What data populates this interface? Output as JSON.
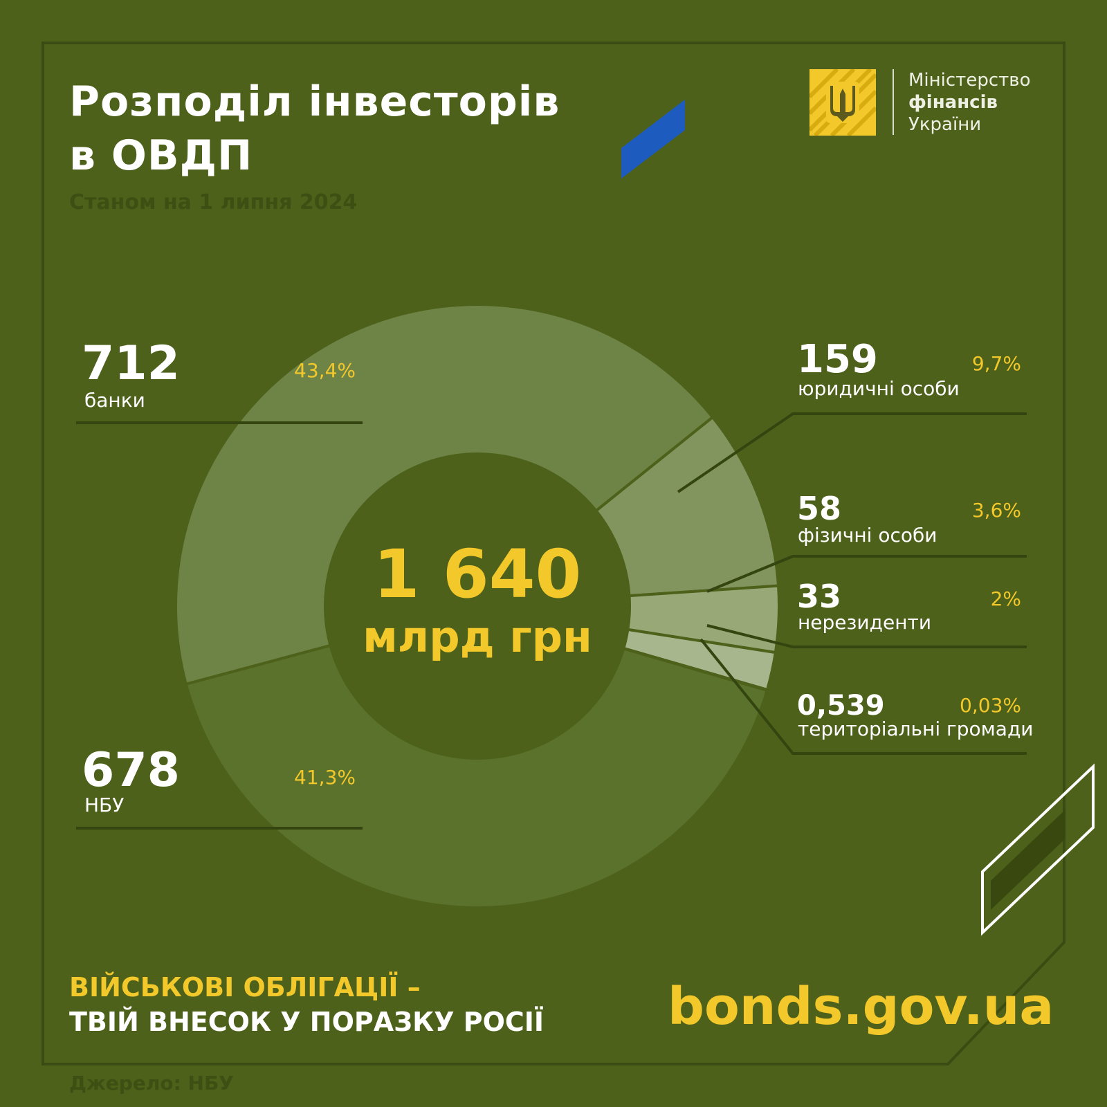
{
  "header": {
    "title_line1": "Розподіл інвесторів",
    "title_line2": "в ОВДП",
    "subtitle": "Станом на 1 липня 2024"
  },
  "logo": {
    "line1": "Міністерство",
    "line2": "фінансів",
    "line3": "України",
    "icon": "trident-icon"
  },
  "center": {
    "value": "1 640",
    "unit": "млрд грн"
  },
  "labels": [
    {
      "value": "712",
      "name": "банки",
      "pct": "43,4%"
    },
    {
      "value": "678",
      "name": "НБУ",
      "pct": "41,3%"
    },
    {
      "value": "159",
      "name": "юридичні особи",
      "pct": "9,7%"
    },
    {
      "value": "58",
      "name": "фізичні особи",
      "pct": "3,6%"
    },
    {
      "value": "33",
      "name": "нерезиденти",
      "pct": "2%"
    },
    {
      "value": "0,539",
      "name": "територіальні громади",
      "pct": "0,03%"
    }
  ],
  "footer": {
    "slogan_line1": "ВІЙСЬКОВІ ОБЛІГАЦІЇ –",
    "slogan_line2": "ТВІЙ ВНЕСОК У ПОРАЗКУ РОСІЇ",
    "website": "bonds.gov.ua",
    "source": "Джерело: НБУ"
  },
  "colors": {
    "background": "#4d611a",
    "accent": "#f2c82a",
    "ukraine_blue": "#1d5bbf"
  },
  "chart_data": {
    "type": "pie",
    "title": "Розподіл інвесторів в ОВДП",
    "unit": "млрд грн",
    "total": 1640,
    "categories": [
      "банки",
      "НБУ",
      "юридичні особи",
      "фізичні особи",
      "нерезиденти",
      "територіальні громади"
    ],
    "values": [
      712,
      678,
      159,
      58,
      33,
      0.539
    ],
    "percentages": [
      43.4,
      41.3,
      9.7,
      3.6,
      2,
      0.03
    ],
    "colors": [
      "#6e8447",
      "#5b722d",
      "#83955f",
      "#98a877",
      "#a7b68d",
      "#b5c29d"
    ]
  }
}
